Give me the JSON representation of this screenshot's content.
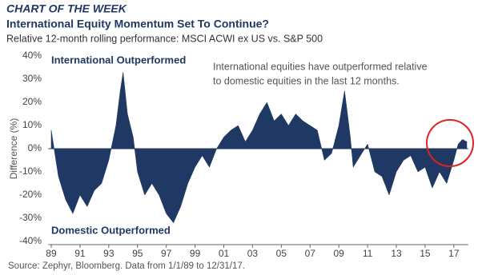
{
  "header": "CHART OF THE WEEK",
  "chart_data": {
    "type": "area",
    "title": "International Equity Momentum Set To Continue?",
    "subtitle": "Relative 12-month rolling performance: MSCI ACWI ex US vs. S&P 500",
    "y_label": "Difference (%)",
    "annotations": [
      "International Outperformed",
      "Domestic Outperformed",
      "International equities have outperformed relative",
      "to domestic equities in the last 12 months."
    ],
    "source": "Source: Zephyr, Bloomberg. Data from 1/1/89 to 12/31/17.",
    "color": "#1f3864",
    "x": [
      1989.0,
      1989.2,
      1989.5,
      1990,
      1990.5,
      1991,
      1991.5,
      1992,
      1992.5,
      1993,
      1993.5,
      1993.8,
      1994.0,
      1994.3,
      1994.7,
      1995,
      1995.5,
      1996,
      1996.5,
      1997,
      1997.5,
      1998,
      1998.5,
      1999,
      1999.5,
      2000,
      2000.5,
      2001,
      2001.5,
      2002,
      2002.5,
      2003,
      2003.5,
      2004,
      2004.5,
      2005,
      2005.5,
      2006,
      2006.5,
      2007,
      2007.5,
      2008,
      2008.5,
      2009,
      2009.4,
      2009.8,
      2010,
      2010.5,
      2011,
      2011.5,
      2012,
      2012.5,
      2013,
      2013.5,
      2014,
      2014.5,
      2015,
      2015.5,
      2016,
      2016.5,
      2017,
      2017.3,
      2017.6,
      2017.9
    ],
    "values": [
      8,
      0,
      -12,
      -22,
      -28,
      -20,
      -25,
      -18,
      -15,
      -5,
      10,
      25,
      33,
      15,
      5,
      -10,
      -20,
      -15,
      -20,
      -28,
      -32,
      -25,
      -15,
      -8,
      -3,
      -8,
      0,
      5,
      8,
      10,
      3,
      8,
      15,
      20,
      12,
      15,
      10,
      15,
      12,
      10,
      8,
      -5,
      -2,
      10,
      25,
      5,
      -8,
      -3,
      2,
      -10,
      -12,
      -20,
      -10,
      -5,
      -3,
      -10,
      -8,
      -17,
      -10,
      -15,
      -5,
      2,
      4,
      3
    ],
    "xlim": [
      1988.8,
      2018
    ],
    "xticks": [
      {
        "value": 1989,
        "label": "89"
      },
      {
        "value": 1991,
        "label": "91"
      },
      {
        "value": 1993,
        "label": "93"
      },
      {
        "value": 1995,
        "label": "95"
      },
      {
        "value": 1997,
        "label": "97"
      },
      {
        "value": 1999,
        "label": "99"
      },
      {
        "value": 2001,
        "label": "01"
      },
      {
        "value": 2003,
        "label": "03"
      },
      {
        "value": 2005,
        "label": "05"
      },
      {
        "value": 2007,
        "label": "07"
      },
      {
        "value": 2009,
        "label": "09"
      },
      {
        "value": 2011,
        "label": "11"
      },
      {
        "value": 2013,
        "label": "13"
      },
      {
        "value": 2015,
        "label": "15"
      },
      {
        "value": 2017,
        "label": "17"
      }
    ],
    "ylim": [
      -40,
      40
    ],
    "yticks": [
      {
        "value": 40,
        "label": "40%"
      },
      {
        "value": 30,
        "label": "30%"
      },
      {
        "value": 20,
        "label": "20%"
      },
      {
        "value": 10,
        "label": "10%"
      },
      {
        "value": 0,
        "label": "0%"
      },
      {
        "value": -10,
        "label": "-10%"
      },
      {
        "value": -20,
        "label": "-20%"
      },
      {
        "value": -30,
        "label": "-30%"
      },
      {
        "value": -40,
        "label": "-40%"
      }
    ]
  }
}
